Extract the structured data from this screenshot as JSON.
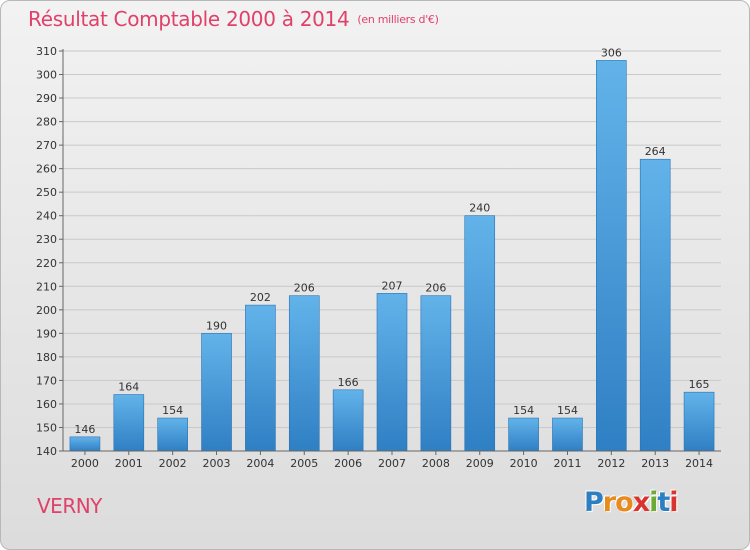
{
  "title": "Résultat Comptable 2000 à 2014",
  "unit_label": "(en milliers d'€)",
  "town_label": "VERNY",
  "logo": {
    "letters": [
      "P",
      "r",
      "o",
      "x",
      "i",
      "t",
      "i"
    ],
    "colors": [
      "#2e7fc2",
      "#e88a1c",
      "#e88a1c",
      "#d8332e",
      "#6aab35",
      "#2e7fc2",
      "#d8332e"
    ]
  },
  "colors": {
    "bar_light": "#63b3ea",
    "bar_dark": "#2f7fc4",
    "title": "#e0416a"
  },
  "chart_data": {
    "type": "bar",
    "title": "Résultat Comptable 2000 à 2014",
    "ylabel": "en milliers d'€",
    "xlabel": "",
    "categories": [
      "2000",
      "2001",
      "2002",
      "2003",
      "2004",
      "2005",
      "2006",
      "2007",
      "2008",
      "2009",
      "2010",
      "2011",
      "2012",
      "2013",
      "2014"
    ],
    "values": [
      146,
      164,
      154,
      190,
      202,
      206,
      166,
      207,
      206,
      240,
      154,
      154,
      306,
      264,
      165
    ],
    "ylim": [
      140,
      310
    ],
    "yticks": [
      140,
      150,
      160,
      170,
      180,
      190,
      200,
      210,
      220,
      230,
      240,
      250,
      260,
      270,
      280,
      290,
      300,
      310
    ],
    "grid": true,
    "legend": "none"
  }
}
